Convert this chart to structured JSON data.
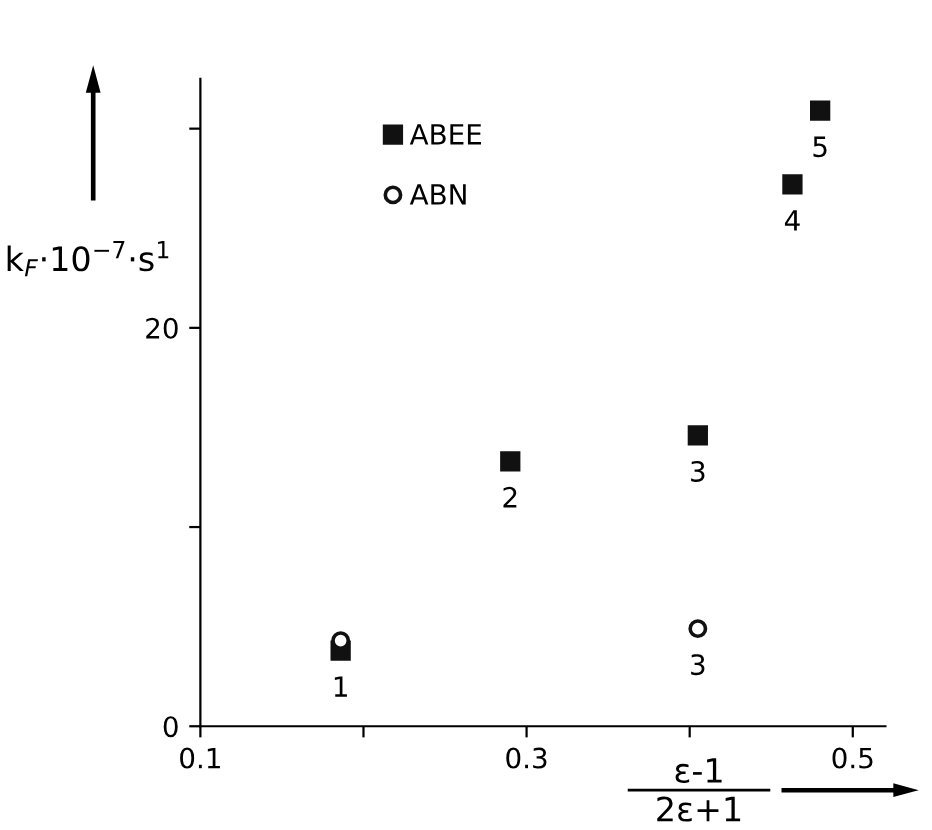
{
  "chart_data": {
    "type": "scatter",
    "xlabel": "ε-1\n2ε+1",
    "ylabel": "k$_{F}$·10$^{−7}$·s$^{1}$",
    "series": [
      {
        "name": "ABEE",
        "color": "#111111",
        "marker": "square",
        "x": [
          0.186,
          0.29,
          0.405,
          0.463,
          0.48
        ],
        "values": [
          3.8,
          13.3,
          14.6,
          27.2,
          30.9
        ]
      },
      {
        "name": "ABN",
        "color": "#111111",
        "marker": "circle",
        "x": [
          0.186,
          0.405
        ],
        "values": [
          4.3,
          4.9
        ]
      }
    ],
    "annotations": [
      {
        "text": "1",
        "x": 0.186,
        "y": 3.8
      },
      {
        "text": "2",
        "x": 0.29,
        "y": 13.3
      },
      {
        "text": "3",
        "x": 0.405,
        "y": 14.6
      },
      {
        "text": "4",
        "x": 0.463,
        "y": 27.2
      },
      {
        "text": "5",
        "x": 0.48,
        "y": 30.9
      },
      {
        "text": "3",
        "x": 0.405,
        "y": 4.9
      }
    ],
    "xlim": [
      0.1,
      0.52
    ],
    "ylim": [
      0,
      32.5
    ],
    "xticks": [
      0.1,
      {
        "value": 0.2,
        "label": null
      },
      0.3,
      {
        "value": 0.4,
        "label": null
      },
      0.5
    ],
    "yticks": [
      0,
      {
        "value": 10,
        "label": null
      },
      20,
      {
        "value": 30,
        "label": null
      }
    ],
    "grid": false,
    "legend": "top left"
  }
}
